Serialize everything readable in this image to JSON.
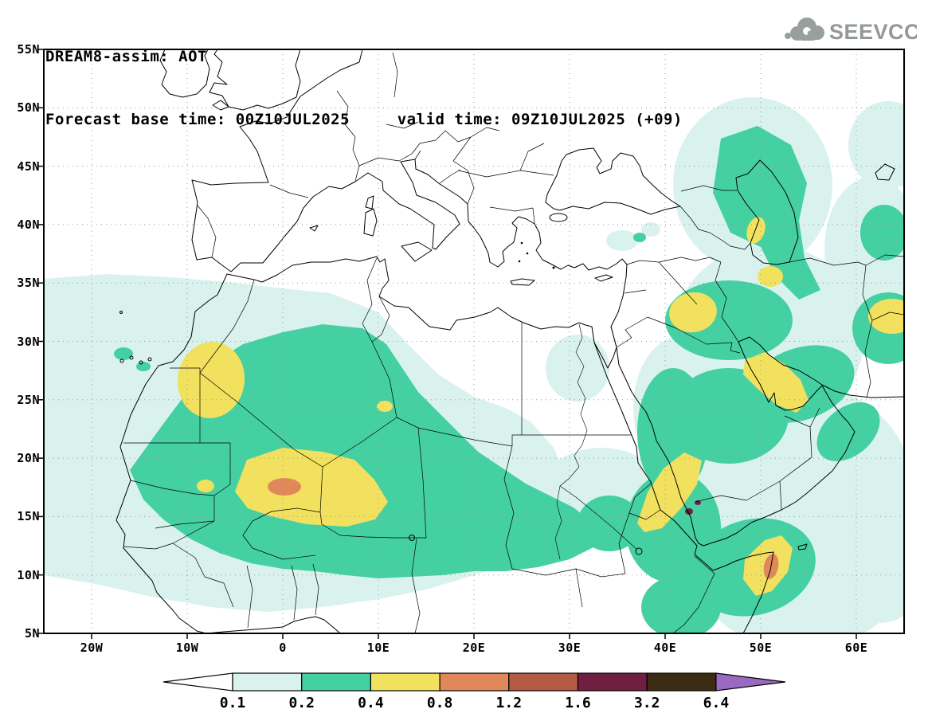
{
  "header": {
    "title": "DREAM8-assim: AOT",
    "subtitle": "Forecast base time: 00Z10JUL2025     valid time: 09Z10JUL2025 (+09)"
  },
  "logo": {
    "text": "SEEVCCC",
    "icon": "cloud-icon",
    "color": "#939a96"
  },
  "chart_data": {
    "type": "heatmap",
    "subtype": "filled-contour-geographic-map",
    "title": "DREAM8-assim: AOT",
    "variable": "Aerosol Optical Thickness (AOT)",
    "model": "DREAM8-assim",
    "forecast_base_time": "00Z10JUL2025",
    "valid_time": "09Z10JUL2025 (+09)",
    "lead": "+09",
    "lon_range": [
      -25,
      65
    ],
    "lat_range": [
      5,
      55
    ],
    "x_ticks": [
      {
        "label": "20W",
        "lon": -20
      },
      {
        "label": "10W",
        "lon": -10
      },
      {
        "label": "0",
        "lon": 0
      },
      {
        "label": "10E",
        "lon": 10
      },
      {
        "label": "20E",
        "lon": 20
      },
      {
        "label": "30E",
        "lon": 30
      },
      {
        "label": "40E",
        "lon": 40
      },
      {
        "label": "50E",
        "lon": 50
      },
      {
        "label": "60E",
        "lon": 60
      }
    ],
    "y_ticks": [
      {
        "label": "55N",
        "lat": 55
      },
      {
        "label": "50N",
        "lat": 50
      },
      {
        "label": "45N",
        "lat": 45
      },
      {
        "label": "40N",
        "lat": 40
      },
      {
        "label": "35N",
        "lat": 35
      },
      {
        "label": "30N",
        "lat": 30
      },
      {
        "label": "25N",
        "lat": 25
      },
      {
        "label": "20N",
        "lat": 20
      },
      {
        "label": "15N",
        "lat": 15
      },
      {
        "label": "10N",
        "lat": 10
      },
      {
        "label": "5N",
        "lat": 5
      }
    ],
    "grid": "dotted, every 10 deg lon / 5 deg lat",
    "levels": [
      0.1,
      0.2,
      0.4,
      0.8,
      1.2,
      1.6,
      3.2,
      6.4
    ],
    "colorbar_labels": [
      "0.1",
      "0.2",
      "0.4",
      "0.8",
      "1.2",
      "1.6",
      "3.2",
      "6.4"
    ],
    "palette": {
      "under": "#ffffff",
      "bins": [
        "#d9f2ee",
        "#45d0a2",
        "#f2e15e",
        "#e0885a",
        "#b55a45",
        "#701f40",
        "#3c2c14"
      ],
      "over": "#9a6ac0"
    },
    "regions_depicted": [
      {
        "area": "Sahel dust maximum, Mali/Niger (~0E, 17.5N)",
        "max_bin": "0.8-1.2"
      },
      {
        "area": "SW Algeria (~7W, 27N)",
        "max_bin": "0.4-0.8"
      },
      {
        "area": "Sudan/Eritrea Red Sea coast (~40E, 17N)",
        "max_bin": "0.4-0.8 with small 1.6-3.2 spots"
      },
      {
        "area": "Horn of Africa, NE Somalia (~51E, 10.5N)",
        "max_bin": "0.8-1.2"
      },
      {
        "area": "N Saudi Arabia / Iraq (~43E, 32N)",
        "max_bin": "0.4-0.8"
      },
      {
        "area": "Persian Gulf / S Iran (~51E, 27N)",
        "max_bin": "0.4-0.8"
      },
      {
        "area": "SW Caspian (~50E, 38N)",
        "max_bin": "0.4-0.8"
      },
      {
        "area": "Afghanistan at map edge (~63E, 32N)",
        "max_bin": "0.4-0.8"
      },
      {
        "area": "Caucasus-Caspian belt (~47E, 42N)",
        "max_bin": "0.2-0.4"
      },
      {
        "area": "Central Sahara background band (20W-30E, 10-32N)",
        "max_bin": "0.2-0.4"
      },
      {
        "area": "Broad envelope over N Africa, E Atlantic and Middle East",
        "max_bin": "0.1-0.2"
      }
    ]
  }
}
